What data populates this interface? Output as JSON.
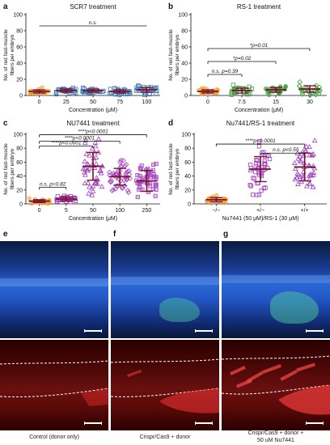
{
  "panels": {
    "a": {
      "letter": "a",
      "title": "SCR7 treatment"
    },
    "b": {
      "letter": "b",
      "title": "RS-1 treatment"
    },
    "c": {
      "letter": "c",
      "title": "NU7441 treatment"
    },
    "d": {
      "letter": "d",
      "title": "Nu7441/RS-1 treatment"
    },
    "e": {
      "letter": "e",
      "caption": "Control (donor only)"
    },
    "f": {
      "letter": "f",
      "caption": "Crispr/Cas9 + donor"
    },
    "g": {
      "letter": "g",
      "caption_line1": "Crispr/Cas9 + donor +",
      "caption_line2": "50 uM Nu7441"
    }
  },
  "colors": {
    "orange": "#f0a030",
    "blue": "#3a7ab8",
    "green": "#3aa03a",
    "purple": "#a040c0",
    "maroon": "#7a1030"
  },
  "chart_data": [
    {
      "type": "scatter",
      "panel": "a",
      "title": "SCR7 treatment",
      "xlabel": "Concentration (μM)",
      "ylabel": "No. of red fast-muscle fibers per embryo",
      "categories": [
        "0",
        "25",
        "50",
        "75",
        "100"
      ],
      "ylim": [
        0,
        100
      ],
      "yticks": [
        0,
        20,
        40,
        60,
        80,
        100
      ],
      "means": [
        5,
        6,
        6,
        5,
        7
      ],
      "sds": [
        2,
        2,
        2,
        2,
        3
      ],
      "annotations": [
        {
          "text": "n.s.",
          "from": 0,
          "to": 4
        }
      ]
    },
    {
      "type": "scatter",
      "panel": "b",
      "title": "RS-1 treatment",
      "xlabel": "Concentration (μM)",
      "ylabel": "No. of red fast-muscle fibers per embryo",
      "categories": [
        "0",
        "7.5",
        "15",
        "30"
      ],
      "ylim": [
        0,
        100
      ],
      "yticks": [
        0,
        20,
        40,
        60,
        80,
        100
      ],
      "means": [
        5,
        6,
        7,
        8
      ],
      "sds": [
        2,
        3,
        3,
        4
      ],
      "annotations": [
        {
          "text": "*p=0.01",
          "from": 0,
          "to": 3
        },
        {
          "text": "*p=0.02",
          "from": 0,
          "to": 2
        },
        {
          "text": "n.s. p=0.39",
          "from": 0,
          "to": 1
        }
      ]
    },
    {
      "type": "scatter",
      "panel": "c",
      "title": "NU7441 treatment",
      "xlabel": "Concentration (μM)",
      "ylabel": "No. of red fast-muscle fibers per embryo",
      "categories": [
        "0",
        "5",
        "50",
        "100",
        "250"
      ],
      "ylim": [
        0,
        100
      ],
      "yticks": [
        0,
        20,
        40,
        60,
        80,
        100
      ],
      "means": [
        4,
        7,
        54,
        39,
        33
      ],
      "sds": [
        2,
        3,
        20,
        12,
        15
      ],
      "annotations": [
        {
          "text": "****p<0.0001",
          "from": 0,
          "to": 4
        },
        {
          "text": "****p<0.0001",
          "from": 0,
          "to": 3
        },
        {
          "text": "****p<0.0001",
          "from": 0,
          "to": 2
        },
        {
          "text": "n.s. p=0.82",
          "from": 0,
          "to": 1
        }
      ]
    },
    {
      "type": "scatter",
      "panel": "d",
      "title": "Nu7441/RS-1 treatment",
      "xlabel": "Nu7441 (50 μM)/RS-1 (30 μM)",
      "ylabel": "No. of red fast-muscle fibers per embryo",
      "categories": [
        "−/−",
        "+/−",
        "+/+"
      ],
      "ylim": [
        0,
        100
      ],
      "yticks": [
        0,
        20,
        40,
        60,
        80,
        100
      ],
      "means": [
        6,
        50,
        53
      ],
      "sds": [
        3,
        18,
        20
      ],
      "annotations": [
        {
          "text": "****p<0.0001",
          "from": 0,
          "to": 2
        },
        {
          "text": "n.s. p<0.55",
          "from": 1,
          "to": 2
        }
      ]
    }
  ]
}
